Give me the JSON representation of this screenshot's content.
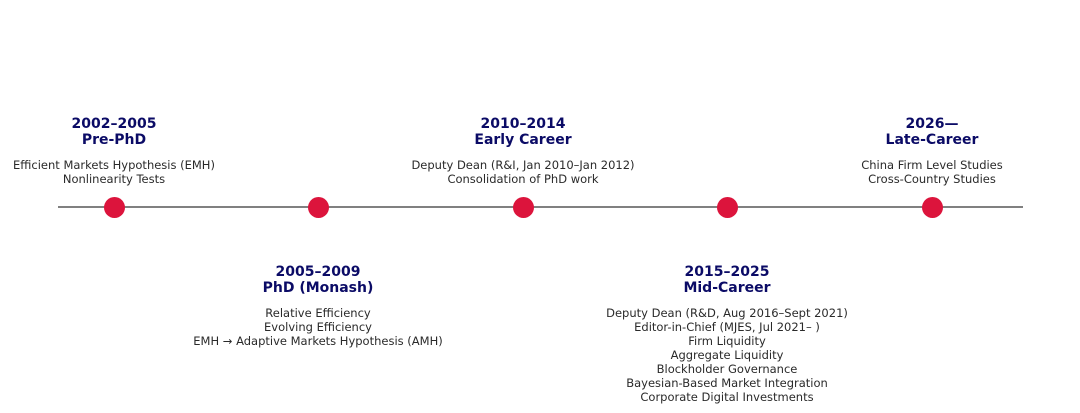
{
  "colors": {
    "line": "#808080",
    "dot": "#dc143c",
    "heading": "#0b0b66",
    "text": "#2a2a2a"
  },
  "milestones": [
    {
      "period": "2002–2005",
      "phase": "Pre-PhD",
      "items": [
        "Efficient Markets Hypothesis (EMH)",
        "Nonlinearity Tests"
      ]
    },
    {
      "period": "2005–2009",
      "phase": "PhD (Monash)",
      "items": [
        "Relative Efficiency",
        "Evolving Efficiency",
        "EMH → Adaptive Markets Hypothesis (AMH)"
      ]
    },
    {
      "period": "2010–2014",
      "phase": "Early Career",
      "items": [
        "Deputy Dean (R&I, Jan 2010–Jan 2012)",
        "Consolidation of PhD work"
      ]
    },
    {
      "period": "2015–2025",
      "phase": "Mid-Career",
      "items": [
        "Deputy Dean (R&D, Aug 2016–Sept 2021)",
        "Editor-in-Chief (MJES, Jul 2021– )",
        "Firm Liquidity",
        "Aggregate Liquidity",
        "Blockholder Governance",
        "Bayesian-Based Market Integration",
        "Corporate Digital Investments"
      ]
    },
    {
      "period": "2026—",
      "phase": "Late-Career",
      "items": [
        "China Firm Level Studies",
        "Cross-Country Studies"
      ]
    }
  ]
}
